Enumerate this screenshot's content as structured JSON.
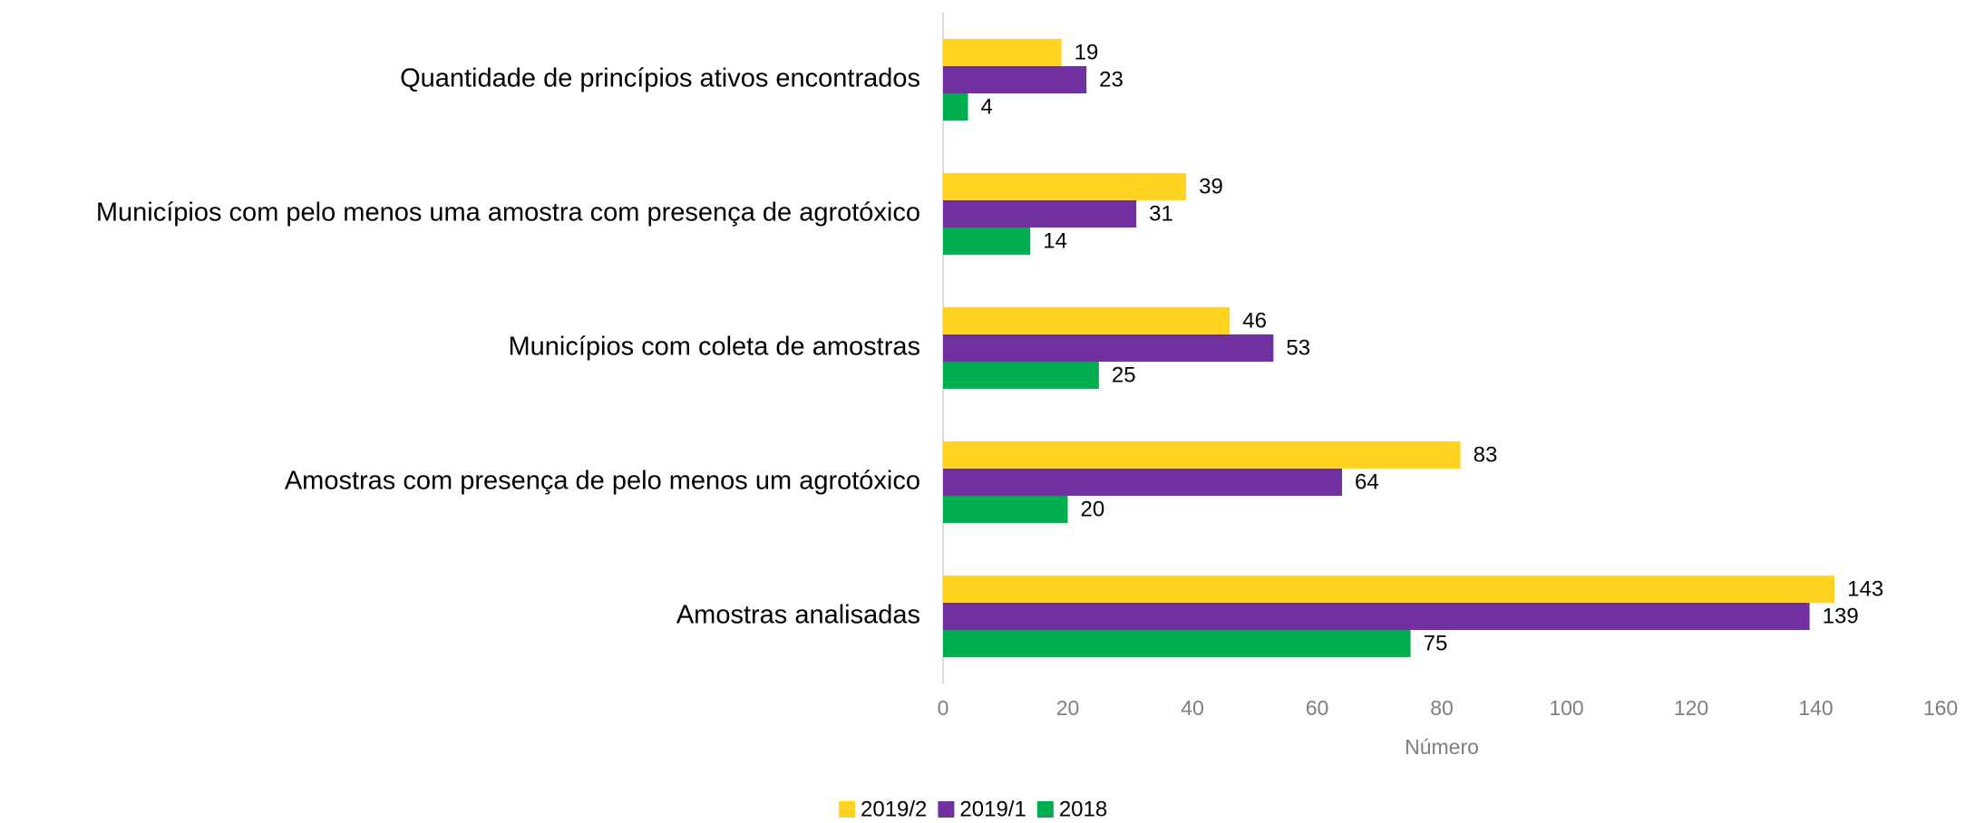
{
  "chart_data": {
    "type": "hbar",
    "categories": [
      "Quantidade de princípios ativos encontrados",
      "Municípios com pelo menos uma amostra com presença de agrotóxico",
      "Municípios com coleta de amostras",
      "Amostras com presença de pelo menos um agrotóxico",
      "Amostras analisadas"
    ],
    "series": [
      {
        "name": "2019/2",
        "color": "#ffd320",
        "values": [
          19,
          39,
          46,
          83,
          143
        ]
      },
      {
        "name": "2019/1",
        "color": "#7030a0",
        "values": [
          23,
          31,
          53,
          64,
          139
        ]
      },
      {
        "name": "2018",
        "color": "#00b050",
        "values": [
          4,
          14,
          25,
          20,
          75
        ]
      }
    ],
    "xlabel": "Número",
    "xlim": [
      0,
      160
    ],
    "xticks": [
      0,
      20,
      40,
      60,
      80,
      100,
      120,
      140,
      160
    ],
    "legend": "bottom"
  }
}
